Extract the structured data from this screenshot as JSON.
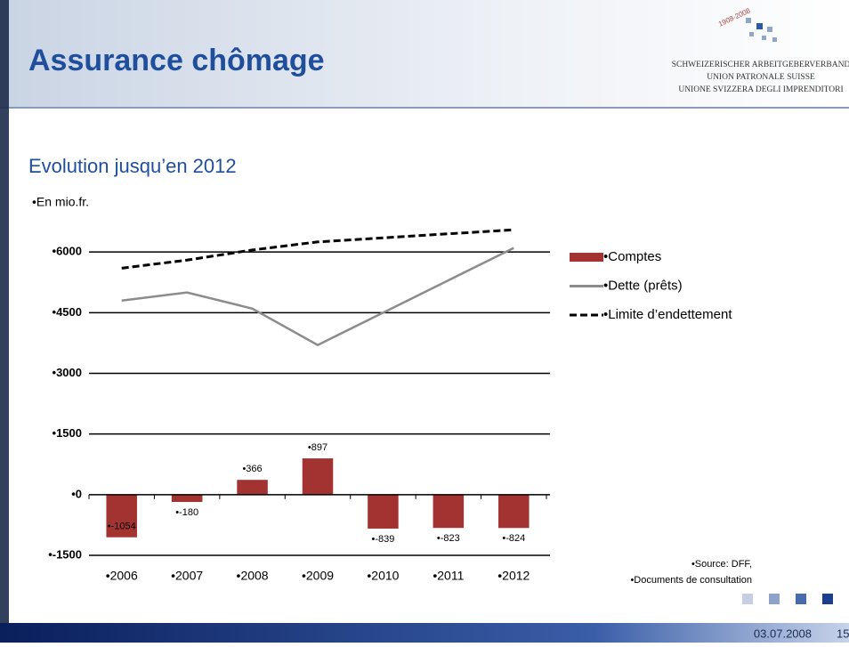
{
  "title": "Assurance chômage",
  "logo": {
    "years": "1908-2008",
    "lines": [
      "SCHWEIZERISCHER ARBEITGEBERVERBAND",
      "UNION PATRONALE SUISSE",
      "UNIONE SVIZZERA DEGLI IMPRENDITORI"
    ]
  },
  "subtitle": "Evolution jusqu’en 2012",
  "chart_data": {
    "type": "bar-line",
    "y_label": "•En mio.fr.",
    "categories": [
      "•2006",
      "•2007",
      "•2008",
      "•2009",
      "•2010",
      "•2011",
      "•2012"
    ],
    "series": [
      {
        "name": "•Comptes",
        "kind": "bar",
        "color": "#a33330",
        "values": [
          -1054,
          -180,
          366,
          897,
          -839,
          -823,
          -824
        ],
        "value_labels": [
          "•-1054",
          "•-180",
          "•366",
          "•897",
          "•-839",
          "•-823",
          "•-824"
        ]
      },
      {
        "name": "•Dette (prêts)",
        "kind": "line",
        "color": "#8c8c8c",
        "dash": false,
        "values": [
          4800,
          5000,
          4600,
          3700,
          4500,
          5300,
          6100
        ]
      },
      {
        "name": "•Limite d’endettement",
        "kind": "line",
        "color": "#000000",
        "dash": true,
        "values": [
          5600,
          5800,
          6050,
          6250,
          6350,
          6450,
          6550
        ]
      }
    ],
    "ylim": [
      -1500,
      7500
    ],
    "yticks": [
      {
        "value": -1500,
        "label": "•-1500"
      },
      {
        "value": 0,
        "label": "•0"
      },
      {
        "value": 1500,
        "label": "•1500"
      },
      {
        "value": 3000,
        "label": "•3000"
      },
      {
        "value": 4500,
        "label": "•4500"
      },
      {
        "value": 6000,
        "label": "•6000"
      }
    ],
    "grid": true,
    "legend": "right"
  },
  "source": [
    "•Source: DFF,",
    "•Documents de consultation"
  ],
  "footer": {
    "date": "03.07.2008",
    "page": "15"
  }
}
